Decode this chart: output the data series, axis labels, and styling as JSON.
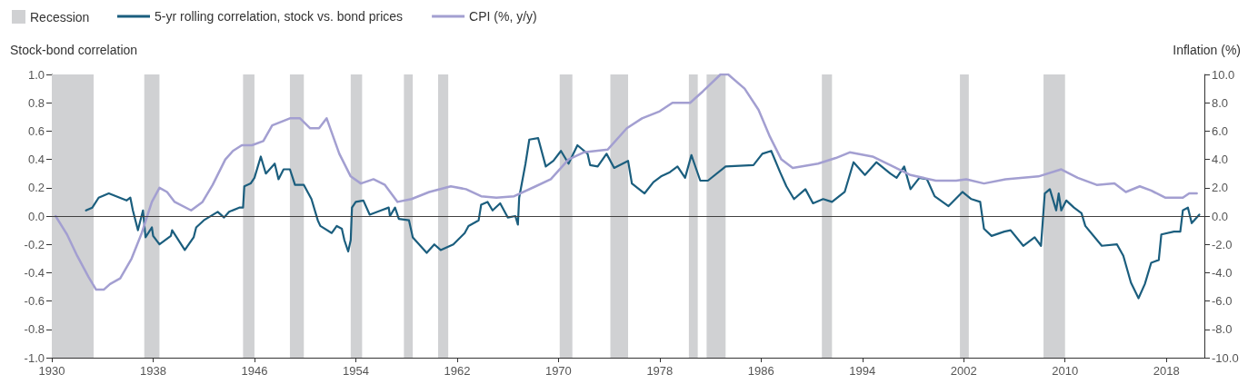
{
  "chart_data": {
    "type": "line",
    "ylabel": "Stock-bond correlation",
    "y2label": "Inflation (%)",
    "xlim": [
      1930,
      2021
    ],
    "xticks": [
      1930,
      1938,
      1946,
      1954,
      1962,
      1970,
      1978,
      1986,
      1994,
      2002,
      2010,
      2018
    ],
    "ylim": [
      -1,
      1
    ],
    "yticks": [
      {
        "value": -1,
        "label": "-1.0"
      },
      {
        "value": -0.8,
        "label": "-0.8"
      },
      {
        "value": -0.6,
        "label": "-0.6"
      },
      {
        "value": -0.4,
        "label": "-0.4"
      },
      {
        "value": -0.2,
        "label": "-0.2"
      },
      {
        "value": 0,
        "label": "0.0"
      },
      {
        "value": 0.2,
        "label": "0.2"
      },
      {
        "value": 0.4,
        "label": "0.4"
      },
      {
        "value": 0.6,
        "label": "0.6"
      },
      {
        "value": 0.8,
        "label": "0.8"
      },
      {
        "value": 1,
        "label": "1.0"
      }
    ],
    "y2lim": [
      -10,
      10
    ],
    "y2ticks": [
      {
        "value": -10,
        "label": "-10.0"
      },
      {
        "value": -8,
        "label": "-8.0"
      },
      {
        "value": -6,
        "label": "-6.0"
      },
      {
        "value": -4,
        "label": "-4.0"
      },
      {
        "value": -2,
        "label": "-2.0"
      },
      {
        "value": 0,
        "label": "0.0"
      },
      {
        "value": 2,
        "label": "2.0"
      },
      {
        "value": 4,
        "label": "4.0"
      },
      {
        "value": 6,
        "label": "6.0"
      },
      {
        "value": 8,
        "label": "8.0"
      },
      {
        "value": 10,
        "label": "10.0"
      }
    ],
    "grid": false,
    "legend": "top left",
    "ref_lines": [
      {
        "axis": "y",
        "value": 0,
        "color": "#404040"
      }
    ],
    "bands": [
      {
        "axis": "x",
        "from": 1930,
        "to": 1933.3,
        "label": "Recession",
        "color": "#d0d1d3"
      },
      {
        "axis": "x",
        "from": 1937.3,
        "to": 1938.5,
        "color": "#d0d1d3"
      },
      {
        "axis": "x",
        "from": 1945.1,
        "to": 1946.0,
        "color": "#d0d1d3"
      },
      {
        "axis": "x",
        "from": 1948.8,
        "to": 1949.9,
        "color": "#d0d1d3"
      },
      {
        "axis": "x",
        "from": 1953.6,
        "to": 1954.5,
        "color": "#d0d1d3"
      },
      {
        "axis": "x",
        "from": 1957.8,
        "to": 1958.5,
        "color": "#d0d1d3"
      },
      {
        "axis": "x",
        "from": 1960.5,
        "to": 1961.3,
        "color": "#d0d1d3"
      },
      {
        "axis": "x",
        "from": 1970.1,
        "to": 1971.1,
        "color": "#d0d1d3"
      },
      {
        "axis": "x",
        "from": 1974.1,
        "to": 1975.5,
        "color": "#d0d1d3"
      },
      {
        "axis": "x",
        "from": 1980.3,
        "to": 1981.0,
        "color": "#d0d1d3"
      },
      {
        "axis": "x",
        "from": 1981.7,
        "to": 1983.2,
        "color": "#d0d1d3"
      },
      {
        "axis": "x",
        "from": 1990.8,
        "to": 1991.6,
        "color": "#d0d1d3"
      },
      {
        "axis": "x",
        "from": 2001.7,
        "to": 2002.4,
        "color": "#d0d1d3"
      },
      {
        "axis": "x",
        "from": 2008.3,
        "to": 2010.0,
        "color": "#d0d1d3"
      }
    ],
    "series": [
      {
        "name": "5-yr rolling correlation, stock vs. bond prices",
        "color": "#1b5e7e",
        "x": [
          1932.7,
          1933.2,
          1933.7,
          1934.5,
          1935.9,
          1936.2,
          1936.4,
          1936.8,
          1937.2,
          1937.4,
          1937.9,
          1938.0,
          1938.5,
          1939.4,
          1939.5,
          1940.5,
          1941.2,
          1941.4,
          1942.0,
          1943.1,
          1943.6,
          1944.0,
          1944.8,
          1945.1,
          1945.2,
          1945.7,
          1946.0,
          1946.5,
          1946.9,
          1947.6,
          1947.9,
          1948.3,
          1948.8,
          1949.2,
          1949.9,
          1950.5,
          1951.0,
          1951.2,
          1952.1,
          1952.5,
          1952.9,
          1953.1,
          1953.4,
          1953.6,
          1953.7,
          1954.0,
          1954.6,
          1955.1,
          1956.0,
          1956.6,
          1956.7,
          1957.1,
          1957.4,
          1958.2,
          1958.5,
          1959.6,
          1960.2,
          1960.7,
          1961.7,
          1962.6,
          1962.9,
          1963.7,
          1963.9,
          1964.4,
          1964.8,
          1965.4,
          1966.0,
          1966.6,
          1966.8,
          1966.9,
          1967.4,
          1967.7,
          1968.4,
          1969.0,
          1969.6,
          1970.2,
          1970.8,
          1971.5,
          1972.3,
          1972.5,
          1973.1,
          1973.8,
          1974.4,
          1975.5,
          1975.8,
          1976.8,
          1977.5,
          1978.1,
          1978.8,
          1979.4,
          1980.0,
          1980.5,
          1981.2,
          1981.8,
          1983.2,
          1985.4,
          1986.1,
          1986.8,
          1987.5,
          1988.0,
          1988.6,
          1989.5,
          1990.1,
          1990.9,
          1991.6,
          1992.6,
          1993.3,
          1994.2,
          1995.1,
          1996.2,
          1996.7,
          1997.3,
          1997.8,
          1998.5,
          1999.1,
          1999.7,
          2000.8,
          2001.9,
          2002.6,
          2003.3,
          2003.6,
          2004.2,
          2005.2,
          2005.7,
          2006.7,
          2007.6,
          2008.1,
          2008.4,
          2008.8,
          2009.3,
          2009.5,
          2009.7,
          2010.1,
          2010.7,
          2011.3,
          2011.6,
          2012.9,
          2014.1,
          2014.6,
          2015.2,
          2015.8,
          2016.3,
          2016.8,
          2017.4,
          2017.6,
          2018.6,
          2019.1,
          2019.3,
          2019.7,
          2020.0,
          2020.6
        ],
        "values": [
          0.04,
          0.06,
          0.13,
          0.16,
          0.11,
          0.13,
          0.04,
          -0.1,
          0.04,
          -0.15,
          -0.08,
          -0.14,
          -0.2,
          -0.14,
          -0.1,
          -0.24,
          -0.15,
          -0.08,
          -0.03,
          0.03,
          -0.01,
          0.03,
          0.06,
          0.06,
          0.21,
          0.23,
          0.27,
          0.42,
          0.3,
          0.37,
          0.26,
          0.33,
          0.33,
          0.22,
          0.22,
          0.12,
          -0.03,
          -0.07,
          -0.12,
          -0.07,
          -0.09,
          -0.17,
          -0.25,
          -0.17,
          0.06,
          0.1,
          0.11,
          0.01,
          0.04,
          0.06,
          0.0,
          0.06,
          -0.02,
          -0.03,
          -0.15,
          -0.26,
          -0.2,
          -0.24,
          -0.2,
          -0.12,
          -0.07,
          -0.03,
          0.08,
          0.1,
          0.04,
          0.09,
          -0.01,
          0.0,
          -0.06,
          0.13,
          0.37,
          0.54,
          0.55,
          0.35,
          0.39,
          0.46,
          0.37,
          0.5,
          0.44,
          0.36,
          0.35,
          0.44,
          0.34,
          0.39,
          0.23,
          0.16,
          0.24,
          0.28,
          0.31,
          0.35,
          0.27,
          0.43,
          0.25,
          0.25,
          0.35,
          0.36,
          0.44,
          0.46,
          0.31,
          0.21,
          0.12,
          0.19,
          0.09,
          0.12,
          0.1,
          0.17,
          0.38,
          0.29,
          0.38,
          0.3,
          0.27,
          0.35,
          0.19,
          0.27,
          0.26,
          0.14,
          0.07,
          0.17,
          0.12,
          0.1,
          -0.09,
          -0.14,
          -0.11,
          -0.1,
          -0.21,
          -0.15,
          -0.21,
          0.16,
          0.19,
          0.04,
          0.16,
          0.04,
          0.11,
          0.06,
          0.02,
          -0.07,
          -0.21,
          -0.2,
          -0.28,
          -0.47,
          -0.58,
          -0.48,
          -0.33,
          -0.31,
          -0.13,
          -0.11,
          -0.11,
          0.04,
          0.06,
          -0.05,
          0.01
        ]
      },
      {
        "name": "CPI (%, y/y)",
        "color": "#a39fd1",
        "axis": "y2",
        "x": [
          1930.3,
          1931.2,
          1932.0,
          1932.9,
          1933.5,
          1934.1,
          1934.6,
          1935.4,
          1936.3,
          1937.1,
          1937.9,
          1938.5,
          1939.1,
          1939.7,
          1941.0,
          1941.9,
          1942.7,
          1943.7,
          1944.3,
          1945.0,
          1945.8,
          1946.7,
          1947.4,
          1948.8,
          1949.6,
          1950.4,
          1951.1,
          1951.7,
          1952.7,
          1953.6,
          1954.4,
          1955.4,
          1956.3,
          1957.3,
          1958.4,
          1959.8,
          1961.5,
          1962.7,
          1963.9,
          1965.1,
          1966.5,
          1968.2,
          1969.4,
          1970.8,
          1972.0,
          1973.9,
          1975.4,
          1976.6,
          1978.0,
          1979.0,
          1980.4,
          1981.4,
          1982.8,
          1983.4,
          1984.7,
          1985.8,
          1986.7,
          1987.6,
          1988.5,
          1990.5,
          1991.9,
          1993.0,
          1994.8,
          1996.2,
          1997.8,
          1999.8,
          2001.4,
          2002.2,
          2003.6,
          2005.3,
          2007.9,
          2009.7,
          2011.0,
          2012.5,
          2013.9,
          2014.8,
          2015.9,
          2016.8,
          2017.9,
          2019.3,
          2019.8,
          2020.4
        ],
        "values": [
          0.0,
          -1.3,
          -2.8,
          -4.3,
          -5.2,
          -5.2,
          -4.8,
          -4.4,
          -3.0,
          -1.2,
          1.0,
          2.0,
          1.7,
          1.0,
          0.4,
          1.0,
          2.2,
          4.0,
          4.6,
          5.0,
          5.0,
          5.3,
          6.4,
          6.9,
          6.9,
          6.2,
          6.2,
          6.9,
          4.4,
          2.8,
          2.3,
          2.6,
          2.2,
          1.0,
          1.2,
          1.7,
          2.1,
          1.9,
          1.4,
          1.3,
          1.4,
          2.1,
          2.6,
          4.0,
          4.5,
          4.7,
          6.2,
          6.9,
          7.4,
          8.0,
          8.0,
          8.8,
          10.0,
          10.0,
          9.0,
          7.5,
          5.6,
          4.0,
          3.4,
          3.7,
          4.1,
          4.5,
          4.2,
          3.6,
          2.9,
          2.5,
          2.5,
          2.6,
          2.3,
          2.6,
          2.8,
          3.3,
          2.7,
          2.2,
          2.3,
          1.7,
          2.1,
          1.8,
          1.3,
          1.3,
          1.6,
          1.6
        ]
      }
    ]
  }
}
